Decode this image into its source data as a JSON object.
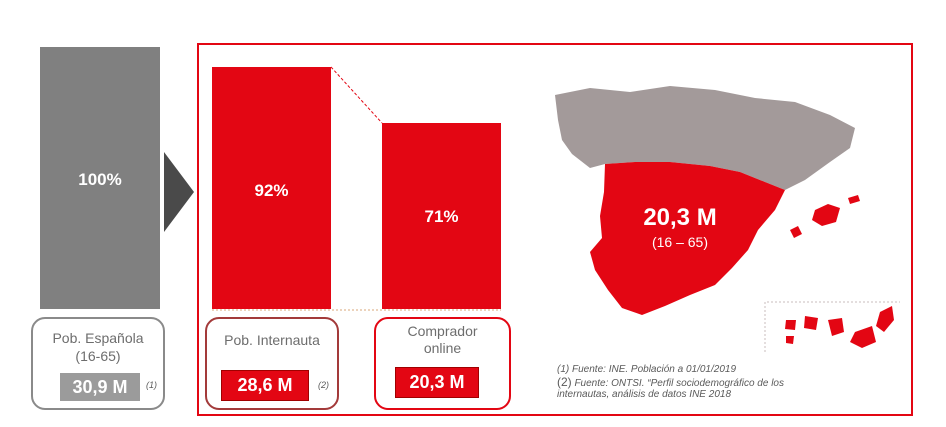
{
  "colors": {
    "red": "#e30613",
    "grey": "#808080",
    "dark_arrow": "#4a4a4a",
    "map_grey": "#a39a9a"
  },
  "chart_data": {
    "type": "bar",
    "categories": [
      "Pob. Española",
      "Pob. Internauta",
      "Comprador online"
    ],
    "values": [
      100,
      92,
      71
    ],
    "value_labels": [
      "100%",
      "92%",
      "71%"
    ],
    "absolute_values": [
      "30,9 M",
      "28,6 M",
      "20,3 M"
    ],
    "category_sublabels": [
      "(16-65)",
      "",
      ""
    ],
    "notes": [
      "(1)",
      "(2)",
      ""
    ],
    "ylim": [
      0,
      100
    ]
  },
  "map": {
    "headline": "20,3 M",
    "subline": "(16 – 65)"
  },
  "footnotes": {
    "line1": "(1) Fuente: INE. Población a 01/01/2019",
    "line2_num": "(2)",
    "line2_text": " Fuente: ONTSI. “Perfil sociodemográfico de los",
    "line3": "internautas, análisis de datos INE 2018"
  }
}
